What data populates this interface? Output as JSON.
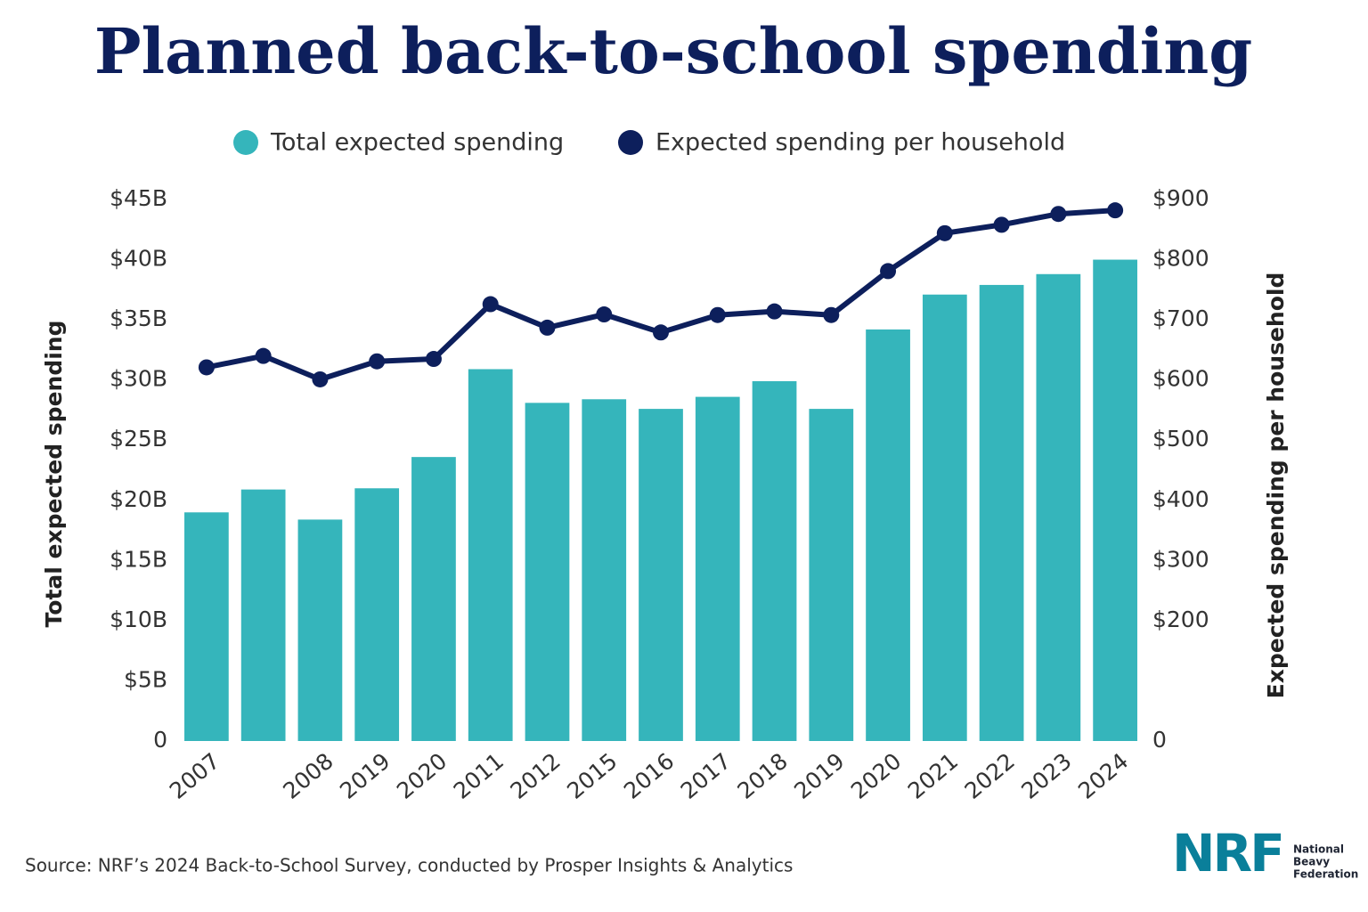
{
  "chart_data": {
    "type": "bar-line",
    "title": "Planned back-to-school spending",
    "categories": [
      "2007",
      null,
      "2008",
      "2019",
      "2020",
      "2011",
      "2012",
      "2015",
      "2016",
      "2017",
      "2018",
      "2019",
      "2020",
      "2021",
      "2022",
      "2023",
      "2024"
    ],
    "series": [
      {
        "name": "Total expected spending",
        "type": "bar",
        "color": "#35b5bb",
        "values": [
          19.0,
          20.9,
          18.4,
          21.0,
          23.6,
          30.9,
          28.1,
          28.4,
          27.6,
          28.6,
          29.9,
          27.6,
          34.2,
          37.1,
          37.9,
          38.8,
          40.0
        ]
      },
      {
        "name": "Expected spending per household",
        "type": "line",
        "axis": "y2",
        "color": "#0d1f5c",
        "values": [
          621,
          640,
          601,
          631,
          635,
          726,
          687,
          709,
          679,
          708,
          714,
          708,
          781,
          844,
          858,
          876,
          882
        ]
      }
    ],
    "ylabel": "Total expected spending",
    "y2label": "Expected spending per household",
    "ylim": [
      0,
      45
    ],
    "yticks": [
      0,
      {
        "value": 5,
        "label": "$5B"
      },
      {
        "value": 10,
        "label": "$10B"
      },
      {
        "value": 15,
        "label": "$15B"
      },
      {
        "value": 20,
        "label": "$20B"
      },
      {
        "value": 25,
        "label": "$25B"
      },
      {
        "value": 30,
        "label": "$30B"
      },
      {
        "value": 35,
        "label": "$35B"
      },
      {
        "value": 40,
        "label": "$40B"
      },
      {
        "value": 45,
        "label": "$45B"
      }
    ],
    "y2lim": [
      0,
      900
    ],
    "y2ticks": [
      0,
      {
        "value": 200,
        "label": "$200"
      },
      {
        "value": 300,
        "label": "$300"
      },
      {
        "value": 400,
        "label": "$400"
      },
      {
        "value": 500,
        "label": "$500"
      },
      {
        "value": 600,
        "label": "$600"
      },
      {
        "value": 700,
        "label": "$700"
      },
      {
        "value": 800,
        "label": "$800"
      },
      {
        "value": 900,
        "label": "$900"
      }
    ],
    "grid": false,
    "source": "Source: NRF’s 2024 Back-to-School Survey, conducted by Prosper Insights & Analytics",
    "logo": "NRF",
    "logo_caption": [
      "National",
      "Beavy",
      "Federation"
    ]
  }
}
